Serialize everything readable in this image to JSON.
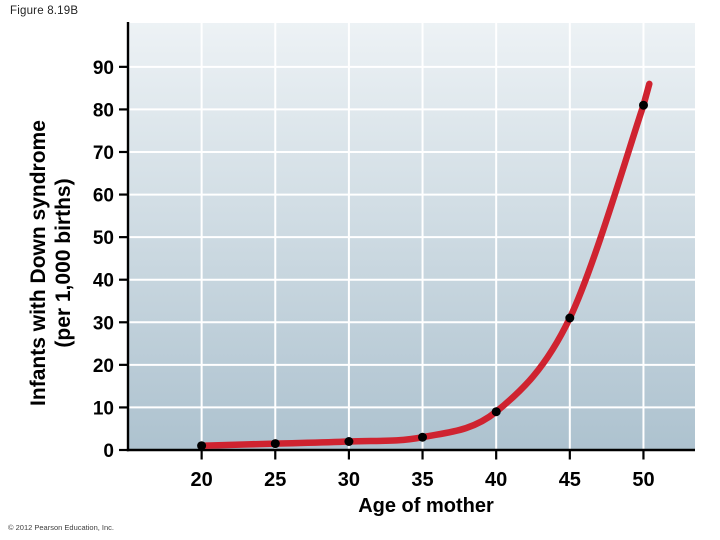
{
  "figure": {
    "label": "Figure 8.19B"
  },
  "footer": {
    "copyright": "© 2012 Pearson Education, Inc."
  },
  "chart_data": {
    "type": "line",
    "title": "Figure 8.19B",
    "xlabel": "Age of mother",
    "ylabel": "Infants with Down syndrome (per 1,000 births)",
    "ylabel_lines": [
      "Infants with Down syndrome",
      "(per 1,000 births)"
    ],
    "x": [
      20,
      25,
      30,
      35,
      40,
      45,
      50
    ],
    "series": [
      {
        "name": "Infants with Down syndrome (per 1,000 births)",
        "values": [
          1,
          1.5,
          2,
          3,
          9,
          31,
          81
        ]
      }
    ],
    "curve_overshoot_point": {
      "x": 50.4,
      "y": 86
    },
    "xticks": [
      20,
      25,
      30,
      35,
      40,
      45,
      50
    ],
    "yticks": [
      0,
      10,
      20,
      30,
      40,
      50,
      60,
      70,
      80,
      90
    ],
    "xlim": [
      15,
      53.5
    ],
    "ylim": [
      0,
      100.3
    ],
    "grid": true,
    "legend": "none",
    "point_style": "filled-black-dots",
    "colors": {
      "line": "#cf2330",
      "points": "#000000",
      "grid": "#ffffff",
      "axis": "#000000",
      "plot_bg_top": "#edf2f5",
      "plot_bg_bottom": "#adc2cf",
      "page_bg": "#ffffff",
      "tick_text": "#000000",
      "figure_label_text": "#232323",
      "copyright_text": "#3e3e3e"
    }
  }
}
